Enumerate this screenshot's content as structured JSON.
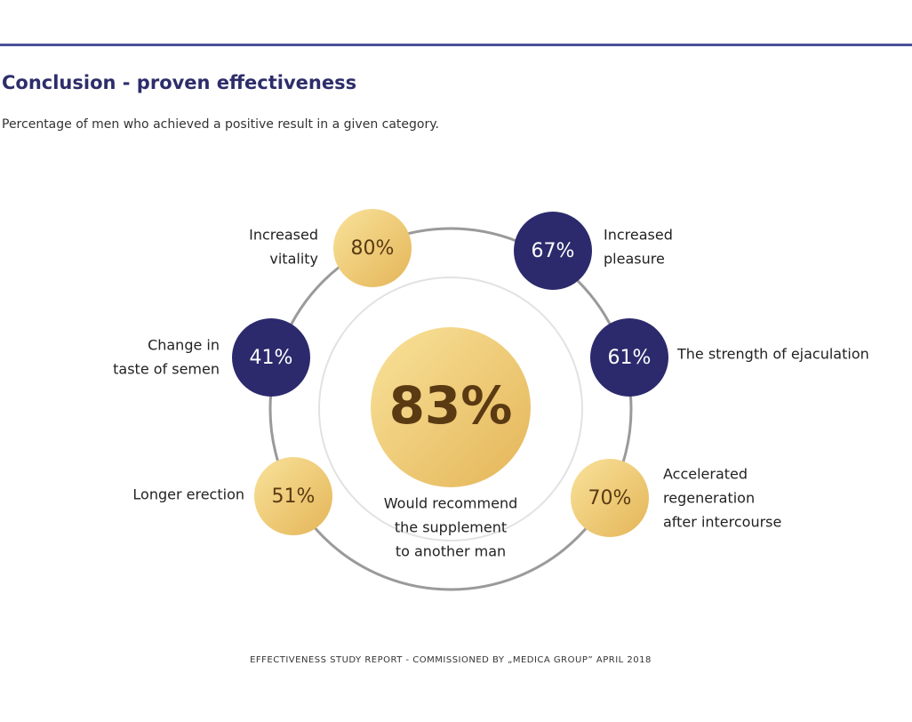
{
  "header": {
    "title": "Conclusion - proven effectiveness",
    "subtitle": "Percentage of men who achieved a positive result in a given category."
  },
  "center": {
    "value": "83%",
    "caption": [
      "Would recommend",
      "the supplement",
      "to another man"
    ]
  },
  "items": [
    {
      "value": "80%",
      "label": [
        "Increased",
        "vitality"
      ]
    },
    {
      "value": "67%",
      "label": [
        "Increased",
        "pleasure"
      ]
    },
    {
      "value": "41%",
      "label": [
        "Change in",
        "taste of semen"
      ]
    },
    {
      "value": "61%",
      "label": [
        "The strength of ejaculation"
      ]
    },
    {
      "value": "51%",
      "label": [
        "Longer erection"
      ]
    },
    {
      "value": "70%",
      "label": [
        "Accelerated",
        "regeneration",
        "after intercourse"
      ]
    }
  ],
  "footer": "EFFECTIVENESS STUDY REPORT - COMMISSIONED BY „MEDICA GROUP” APRIL 2018"
}
